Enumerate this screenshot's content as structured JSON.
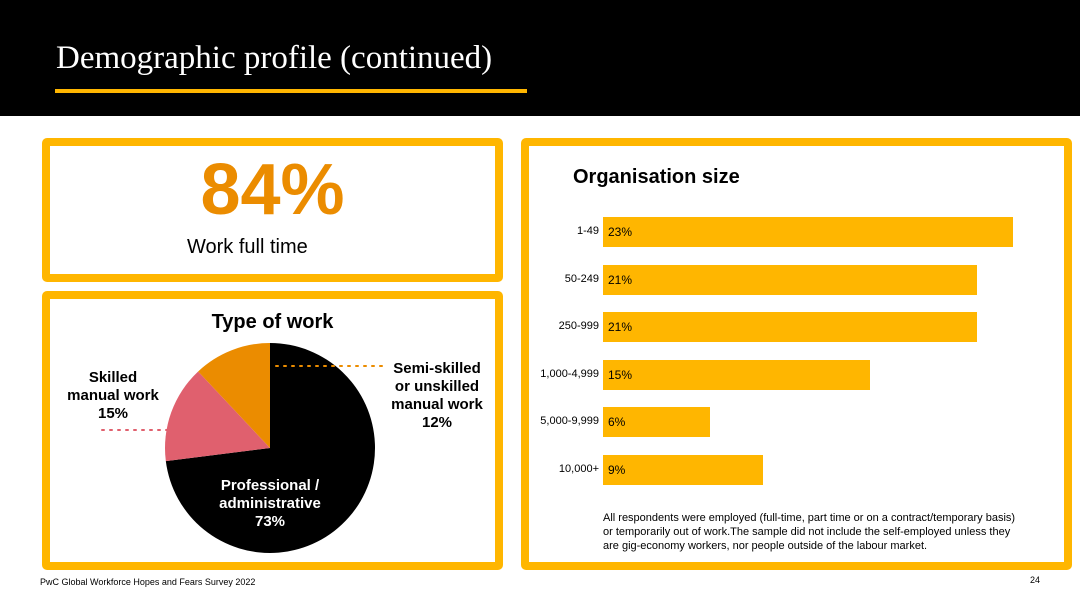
{
  "header": {
    "title": "Demographic profile (continued)"
  },
  "full_time": {
    "value": "84%",
    "label": "Work full time"
  },
  "colors": {
    "accent": "#FFB600",
    "orange": "#EB8C00",
    "pink": "#E0606E",
    "black": "#000000"
  },
  "chart_data": [
    {
      "type": "pie",
      "title": "Type of work",
      "slices": [
        {
          "name": "Professional / administrative",
          "label_line1": "Professional /",
          "label_line2": "administrative",
          "value": 73,
          "display": "73%",
          "color": "#000000"
        },
        {
          "name": "Skilled manual work",
          "label_line1": "Skilled",
          "label_line2": "manual work",
          "value": 15,
          "display": "15%",
          "color": "#E0606E"
        },
        {
          "name": "Semi-skilled or unskilled manual work",
          "label_line1": "Semi-skilled",
          "label_line2": "or unskilled",
          "label_line3": "manual work",
          "value": 12,
          "display": "12%",
          "color": "#EB8C00"
        }
      ]
    },
    {
      "type": "bar",
      "orientation": "horizontal",
      "title": "Organisation size",
      "categories": [
        "1-49",
        "50-249",
        "250-999",
        "1,000-4,999",
        "5,000-9,999",
        "10,000+"
      ],
      "values": [
        23,
        21,
        21,
        15,
        6,
        9
      ],
      "value_labels": [
        "23%",
        "21%",
        "21%",
        "15%",
        "6%",
        "9%"
      ],
      "xlim": [
        0,
        23
      ],
      "bar_color": "#FFB600",
      "grid": false
    }
  ],
  "note": "All respondents were employed (full-time, part time or on a contract/temporary basis) or temporarily out of work.The sample did not include the self-employed unless they are gig-economy workers, nor people outside of the labour market.",
  "footer": {
    "source": "PwC Global Workforce Hopes and Fears Survey 2022",
    "page_number": "24"
  }
}
